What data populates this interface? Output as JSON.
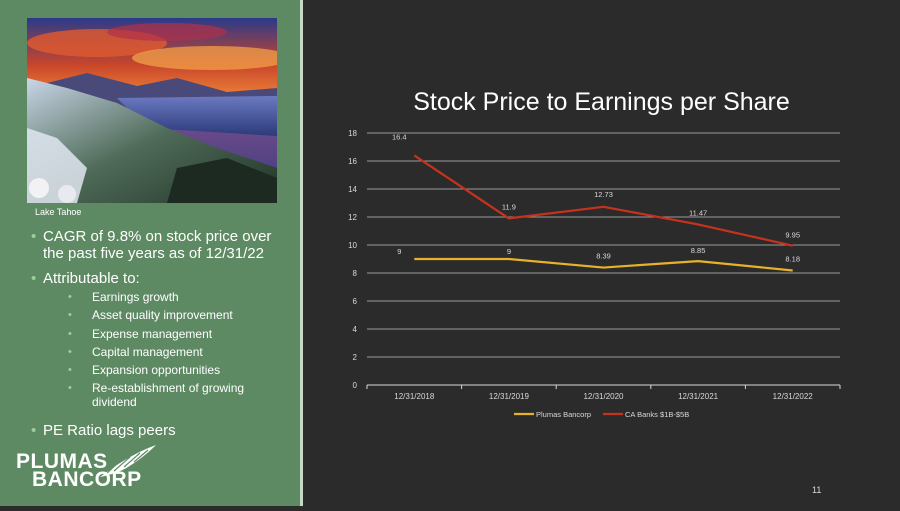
{
  "photo": {
    "caption": "Lake Tahoe"
  },
  "bullets": {
    "cagr": "CAGR of 9.8% on stock price over the past five years as of 12/31/22",
    "attributable": "Attributable to:",
    "sub_items": [
      "Earnings growth",
      "Asset quality improvement",
      "Expense management",
      "Capital management",
      "Expansion opportunities",
      "Re-establishment of growing dividend"
    ],
    "pe_ratio": "PE Ratio lags peers"
  },
  "logo": {
    "line1": "PLUMAS",
    "line2": "BANCORP"
  },
  "page_number": "11",
  "colors": {
    "panel_green": "#5e8a63",
    "background": "#2b2b2b",
    "series_plumas": "#e8b12a",
    "series_ca_banks": "#c7321f"
  },
  "chart_data": {
    "type": "line",
    "title": "Stock Price to Earnings per Share",
    "categories": [
      "12/31/2018",
      "12/31/2019",
      "12/31/2020",
      "12/31/2021",
      "12/31/2022"
    ],
    "series": [
      {
        "name": "Plumas Bancorp",
        "values": [
          9,
          9,
          8.39,
          8.85,
          8.18
        ],
        "labels": [
          "9",
          "9",
          "8.39",
          "8.85",
          "8.18"
        ]
      },
      {
        "name": "CA Banks $1B-$5B",
        "values": [
          16.4,
          11.9,
          12.73,
          11.47,
          9.95
        ],
        "labels": [
          "16.4",
          "11.9",
          "12.73",
          "11.47",
          "9.95"
        ]
      }
    ],
    "ylim": [
      0,
      18
    ],
    "yticks": [
      "0",
      "2",
      "4",
      "6",
      "8",
      "10",
      "12",
      "14",
      "16",
      "18"
    ],
    "grid": true,
    "legend": "bottom",
    "xlabel": "",
    "ylabel": ""
  }
}
